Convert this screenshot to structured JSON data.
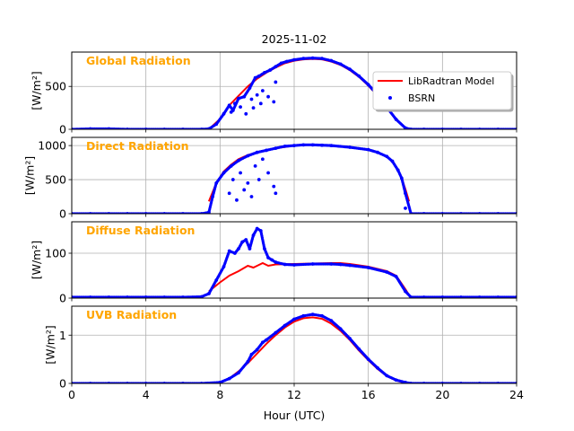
{
  "chart_data": {
    "type": "line",
    "title": "2025-11-02",
    "xlabel": "Hour (UTC)",
    "xlim": [
      0,
      24
    ],
    "xticks": [
      0,
      4,
      8,
      12,
      16,
      20,
      24
    ],
    "grid": true,
    "legend": {
      "location": "top-right of first panel",
      "entries": [
        {
          "name": "LibRadtran Model",
          "style": "line",
          "color": "#ff0000"
        },
        {
          "name": "BSRN",
          "style": "points",
          "color": "#0000ff"
        }
      ]
    },
    "panels": [
      {
        "name": "global",
        "label": "Global Radiation",
        "ylabel": "[W/m²]",
        "ylim": [
          0,
          900
        ],
        "yticks": [
          0,
          500
        ],
        "series": [
          {
            "name": "LibRadtran Model",
            "type": "line",
            "color": "#ff0000",
            "x": [
              7.4,
              8.0,
              8.5,
              9.0,
              9.5,
              10.0,
              10.5,
              11.0,
              11.5,
              12.0,
              12.5,
              13.0,
              13.5,
              14.0,
              14.5,
              15.0,
              15.5,
              16.0,
              16.5,
              17.0,
              17.5,
              18.0,
              18.2
            ],
            "y": [
              0,
              120,
              280,
              390,
              500,
              590,
              660,
              720,
              770,
              800,
              815,
              820,
              815,
              790,
              750,
              690,
              610,
              510,
              390,
              250,
              110,
              15,
              0
            ]
          },
          {
            "name": "BSRN",
            "type": "scatter",
            "color": "#0000ff",
            "x": [
              0,
              1,
              2,
              3,
              4,
              5,
              6,
              7,
              7.4,
              7.8,
              8.2,
              8.5,
              8.7,
              9.0,
              9.3,
              9.6,
              9.9,
              10.1,
              10.4,
              10.7,
              11.0,
              11.3,
              11.6,
              12.0,
              12.5,
              13.0,
              13.5,
              14.0,
              14.5,
              15.0,
              15.5,
              16.0,
              16.5,
              17.0,
              17.5,
              18.0,
              18.3,
              19,
              20,
              21,
              22,
              23,
              24
            ],
            "y": [
              0,
              5,
              5,
              0,
              0,
              0,
              0,
              0,
              5,
              60,
              180,
              280,
              220,
              360,
              380,
              480,
              600,
              620,
              660,
              690,
              730,
              770,
              790,
              810,
              825,
              830,
              825,
              800,
              760,
              700,
              620,
              520,
              400,
              255,
              115,
              15,
              0,
              0,
              0,
              0,
              0,
              0,
              0
            ],
            "outliers_x": [
              8.6,
              8.8,
              9.1,
              9.4,
              9.7,
              9.8,
              10.0,
              10.2,
              10.3,
              10.6,
              10.9,
              11.0
            ],
            "outliers_y": [
              200,
              300,
              260,
              180,
              350,
              250,
              400,
              300,
              450,
              380,
              320,
              550
            ]
          }
        ]
      },
      {
        "name": "direct",
        "label": "Direct Radiation",
        "ylabel": "[W/m²]",
        "ylim": [
          0,
          1120
        ],
        "yticks": [
          0,
          500,
          1000
        ],
        "series": [
          {
            "name": "LibRadtran Model",
            "type": "line",
            "color": "#ff0000",
            "x": [
              7.4,
              7.8,
              8.2,
              8.6,
              9.0,
              9.5,
              10.0,
              10.5,
              11.0,
              11.5,
              12.0,
              13.0,
              14.0,
              15.0,
              16.0,
              16.5,
              17.0,
              17.3,
              17.6,
              17.8,
              18.0,
              18.2
            ],
            "y": [
              180,
              450,
              620,
              720,
              800,
              860,
              900,
              930,
              960,
              980,
              1000,
              1010,
              1000,
              975,
              940,
              900,
              840,
              770,
              640,
              520,
              360,
              180
            ]
          },
          {
            "name": "BSRN",
            "type": "scatter",
            "color": "#0000ff",
            "x": [
              0,
              1,
              2,
              3,
              4,
              5,
              6,
              7,
              7.4,
              7.6,
              7.8,
              8.2,
              8.6,
              9.0,
              9.5,
              10.0,
              10.5,
              11.0,
              11.5,
              12.0,
              12.5,
              13.0,
              13.5,
              14.0,
              15.0,
              16.0,
              16.5,
              17.0,
              17.3,
              17.6,
              17.8,
              18.0,
              18.3,
              19,
              20,
              21,
              22,
              23,
              24
            ],
            "y": [
              0,
              0,
              0,
              0,
              0,
              0,
              0,
              0,
              20,
              250,
              450,
              600,
              700,
              780,
              850,
              900,
              930,
              960,
              990,
              1000,
              1010,
              1010,
              1005,
              1000,
              975,
              940,
              900,
              840,
              770,
              640,
              520,
              300,
              0,
              0,
              0,
              0,
              0,
              0,
              0
            ],
            "outliers_x": [
              8.5,
              8.7,
              8.9,
              9.1,
              9.3,
              9.5,
              9.7,
              9.9,
              10.1,
              10.3,
              10.6,
              10.9,
              11.0,
              18.0
            ],
            "outliers_y": [
              300,
              500,
              200,
              600,
              350,
              450,
              250,
              700,
              500,
              800,
              600,
              400,
              300,
              80
            ]
          }
        ]
      },
      {
        "name": "diffuse",
        "label": "Diffuse Radiation",
        "ylabel": "[W/m²]",
        "ylim": [
          0,
          170
        ],
        "yticks": [
          0,
          100
        ],
        "series": [
          {
            "name": "LibRadtran Model",
            "type": "line",
            "color": "#ff0000",
            "x": [
              7.4,
              8.0,
              8.5,
              9.0,
              9.5,
              9.8,
              10.0,
              10.3,
              10.6,
              11.0,
              12.0,
              13.0,
              14.0,
              14.5,
              15.0,
              16.0,
              17.0,
              17.5,
              18.0,
              18.3
            ],
            "y": [
              15,
              35,
              50,
              60,
              72,
              68,
              72,
              78,
              72,
              75,
              76,
              77,
              78,
              78,
              76,
              70,
              60,
              50,
              20,
              0
            ]
          },
          {
            "name": "BSRN",
            "type": "scatter",
            "color": "#0000ff",
            "x": [
              0,
              1,
              2,
              3,
              4,
              5,
              6,
              7,
              7.4,
              7.8,
              8.2,
              8.5,
              8.8,
              9.0,
              9.2,
              9.4,
              9.6,
              9.8,
              10.0,
              10.2,
              10.4,
              10.6,
              10.8,
              11.0,
              11.5,
              12.0,
              13.0,
              14.0,
              14.5,
              15.0,
              16.0,
              17.0,
              17.5,
              18.0,
              18.3,
              19,
              20,
              21,
              22,
              23,
              24
            ],
            "y": [
              2,
              2,
              2,
              2,
              2,
              2,
              2,
              3,
              10,
              40,
              70,
              105,
              100,
              110,
              125,
              130,
              110,
              140,
              155,
              150,
              110,
              90,
              85,
              80,
              75,
              74,
              76,
              76,
              75,
              73,
              68,
              58,
              48,
              15,
              2,
              2,
              2,
              2,
              2,
              2,
              2
            ]
          }
        ]
      },
      {
        "name": "uvb",
        "label": "UVB Radiation",
        "ylabel": "[W/m²]",
        "ylim": [
          0,
          1.6
        ],
        "yticks": [
          0,
          1
        ],
        "series": [
          {
            "name": "LibRadtran Model",
            "type": "line",
            "color": "#ff0000",
            "x": [
              8.0,
              8.5,
              9.0,
              9.5,
              10.0,
              10.5,
              11.0,
              11.5,
              12.0,
              12.5,
              13.0,
              13.5,
              14.0,
              14.5,
              15.0,
              15.5,
              16.0,
              16.5,
              17.0,
              17.5,
              18.0,
              18.3
            ],
            "y": [
              0.02,
              0.1,
              0.25,
              0.42,
              0.62,
              0.82,
              1.0,
              1.16,
              1.28,
              1.35,
              1.37,
              1.34,
              1.24,
              1.09,
              0.9,
              0.68,
              0.48,
              0.3,
              0.15,
              0.06,
              0.01,
              0
            ]
          },
          {
            "name": "BSRN",
            "type": "scatter",
            "color": "#0000ff",
            "x": [
              0,
              1,
              2,
              3,
              4,
              5,
              6,
              7,
              8.0,
              8.5,
              9.0,
              9.5,
              9.7,
              10.0,
              10.3,
              10.5,
              11.0,
              11.5,
              12.0,
              12.5,
              13.0,
              13.5,
              14.0,
              14.5,
              15.0,
              15.5,
              16.0,
              16.5,
              17.0,
              17.5,
              18.0,
              18.3,
              19,
              20,
              21,
              22,
              23,
              24
            ],
            "y": [
              0,
              0,
              0,
              0,
              0,
              0,
              0,
              0,
              0.02,
              0.1,
              0.22,
              0.45,
              0.6,
              0.7,
              0.85,
              0.9,
              1.05,
              1.2,
              1.33,
              1.4,
              1.43,
              1.4,
              1.3,
              1.13,
              0.93,
              0.71,
              0.5,
              0.32,
              0.16,
              0.07,
              0.02,
              0,
              0,
              0,
              0,
              0,
              0,
              0
            ]
          }
        ]
      }
    ]
  },
  "style": {
    "label_color": "#ffa500",
    "grid_color": "#b0b0b0",
    "model_color": "#ff0000",
    "bsrn_color": "#0000ff"
  }
}
